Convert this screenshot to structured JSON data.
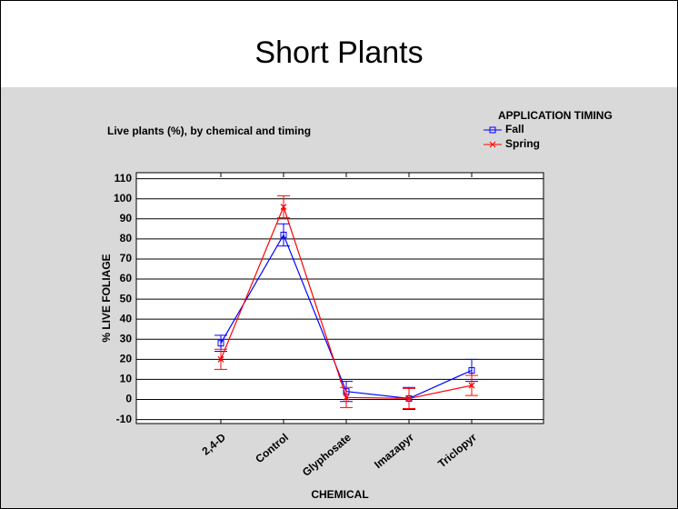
{
  "slide": {
    "title": "Short Plants"
  },
  "chart_data": {
    "type": "line",
    "title": "Live plants (%), by chemical and timing",
    "x_label": "CHEMICAL",
    "y_label": "% LIVE FOLIAGE",
    "legend_title": "APPLICATION TIMING",
    "legend": "top-right",
    "categories": [
      "2,4-D",
      "Control",
      "Glyphosate",
      "Imazapyr",
      "Triclopyr"
    ],
    "series": [
      {
        "name": "Fall",
        "color": "#0000ff",
        "marker": "square",
        "values": [
          28,
          82,
          4,
          0.5,
          14.5
        ],
        "errors": [
          4,
          5.5,
          5,
          5.5,
          5.5
        ]
      },
      {
        "name": "Spring",
        "color": "#ff0000",
        "marker": "x",
        "values": [
          20,
          96,
          1,
          0.5,
          7
        ],
        "errors": [
          5,
          5.5,
          5,
          5,
          5
        ]
      }
    ],
    "ylim": [
      -12,
      113
    ],
    "yticks": [
      -10,
      0,
      10,
      20,
      30,
      40,
      50,
      60,
      70,
      80,
      90,
      100,
      110
    ],
    "grid": true
  }
}
